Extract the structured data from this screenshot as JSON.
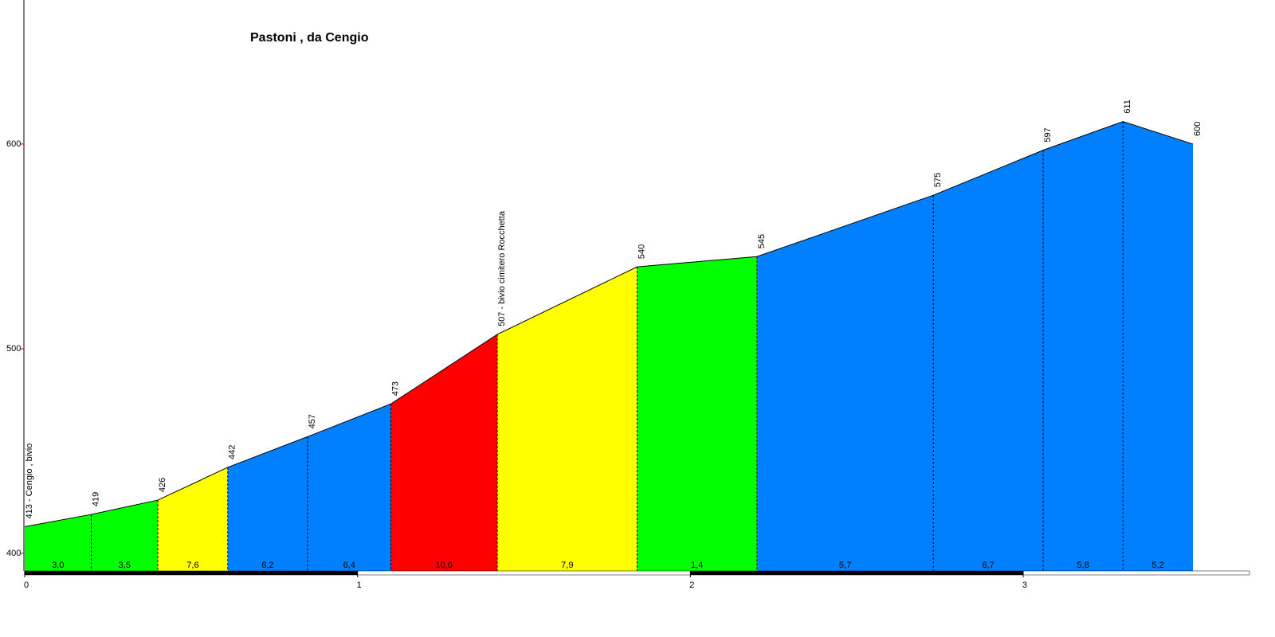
{
  "chart_data": {
    "type": "area",
    "title": "Pastoni , da Cengio",
    "x": [
      0,
      0.2,
      0.4,
      0.61,
      0.85,
      1.1,
      1.42,
      1.84,
      2.2,
      2.73,
      3.06,
      3.3,
      3.51
    ],
    "values": [
      413,
      419,
      426,
      442,
      457,
      473,
      507,
      540,
      545,
      575,
      597,
      611,
      600
    ],
    "value_labels": [
      "413 - Cengio , bivio",
      "419",
      "426",
      "442",
      "457",
      "473",
      "507 - bivio cimitero Rocchetta",
      "540",
      "545",
      "575",
      "597",
      "611",
      "600"
    ],
    "segment_grades": [
      3.0,
      3.5,
      7.6,
      6.2,
      6.4,
      10.6,
      7.9,
      1.4,
      5.7,
      6.7,
      5.8,
      5.2
    ],
    "segment_grade_labels": [
      "3,0",
      "3,5",
      "7,6",
      "6,2",
      "6,4",
      "10,6",
      "7,9",
      "1,4",
      "5,7",
      "6,7",
      "5,8",
      "5,2"
    ],
    "segment_colors": [
      "#00ff00",
      "#00ff00",
      "#ffff00",
      "#0080ff",
      "#0080ff",
      "#ff0000",
      "#ffff00",
      "#00ff00",
      "#0080ff",
      "#0080ff",
      "#0080ff",
      "#0080ff"
    ],
    "xlim": [
      0,
      3.68
    ],
    "ylim": [
      391.4,
      670.4
    ],
    "xticks": [
      0,
      1,
      2,
      3
    ],
    "yticks": [
      400,
      500,
      600
    ]
  }
}
